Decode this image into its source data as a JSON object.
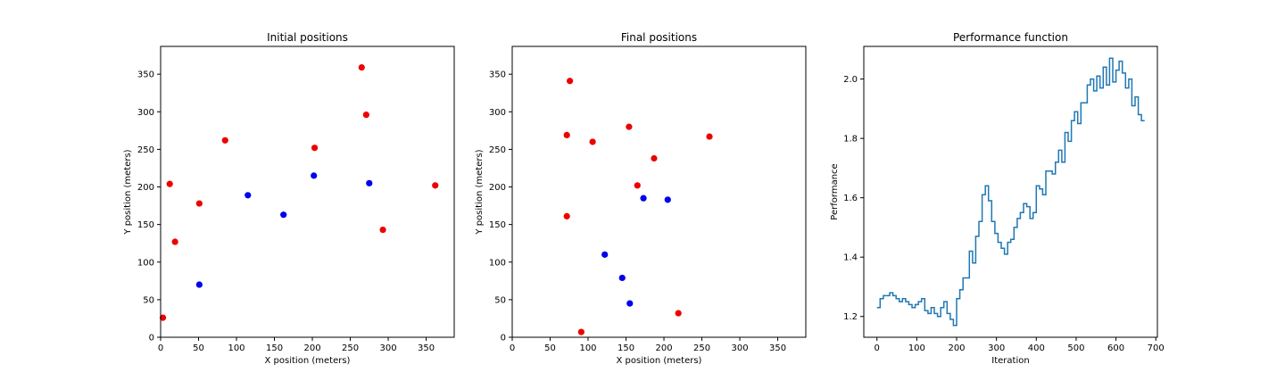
{
  "colors": {
    "red": "#ee0000",
    "blue": "#0000ee",
    "line": "#1f77b4",
    "axis": "#000000"
  },
  "chart_data": [
    {
      "type": "scatter",
      "title": "Initial positions",
      "xlabel": "X position (meters)",
      "ylabel": "Y position (meters)",
      "xlim": [
        0,
        387
      ],
      "ylim": [
        0,
        387
      ],
      "xticks": [
        0,
        50,
        100,
        150,
        200,
        250,
        300,
        350
      ],
      "yticks": [
        0,
        50,
        100,
        150,
        200,
        250,
        300,
        350
      ],
      "series": [
        {
          "color": "red",
          "points": [
            [
              3,
              26
            ],
            [
              12,
              204
            ],
            [
              19,
              127
            ],
            [
              51,
              178
            ],
            [
              85,
              262
            ],
            [
              203,
              252
            ],
            [
              265,
              359
            ],
            [
              271,
              296
            ],
            [
              293,
              143
            ],
            [
              362,
              202
            ]
          ]
        },
        {
          "color": "blue",
          "points": [
            [
              51,
              70
            ],
            [
              115,
              189
            ],
            [
              162,
              163
            ],
            [
              202,
              215
            ],
            [
              275,
              205
            ]
          ]
        }
      ]
    },
    {
      "type": "scatter",
      "title": "Final positions",
      "xlabel": "X position (meters)",
      "ylabel": "Y position (meters)",
      "xlim": [
        0,
        387
      ],
      "ylim": [
        0,
        387
      ],
      "xticks": [
        0,
        50,
        100,
        150,
        200,
        250,
        300,
        350
      ],
      "yticks": [
        0,
        50,
        100,
        150,
        200,
        250,
        300,
        350
      ],
      "series": [
        {
          "color": "red",
          "points": [
            [
              76,
              341
            ],
            [
              72,
              269
            ],
            [
              106,
              260
            ],
            [
              154,
              280
            ],
            [
              187,
              238
            ],
            [
              165,
              202
            ],
            [
              72,
              161
            ],
            [
              260,
              267
            ],
            [
              219,
              32
            ],
            [
              91,
              7
            ]
          ]
        },
        {
          "color": "blue",
          "points": [
            [
              173,
              185
            ],
            [
              205,
              183
            ],
            [
              122,
              110
            ],
            [
              145,
              79
            ],
            [
              155,
              45
            ]
          ]
        }
      ]
    },
    {
      "type": "line",
      "title": "Performance function",
      "xlabel": "Iteration",
      "ylabel": "Performance",
      "xlim": [
        -33,
        704
      ],
      "ylim": [
        1.13,
        2.11
      ],
      "xticks": [
        0,
        100,
        200,
        300,
        400,
        500,
        600,
        700
      ],
      "yticks": [
        1.2,
        1.4,
        1.6,
        1.8,
        2.0
      ],
      "ytick_labels": [
        "1.2",
        "1.4",
        "1.6",
        "1.8",
        "2.0"
      ],
      "step": true,
      "x": [
        0,
        8,
        16,
        24,
        32,
        40,
        48,
        56,
        64,
        72,
        80,
        88,
        96,
        104,
        112,
        120,
        128,
        136,
        144,
        152,
        160,
        168,
        176,
        184,
        192,
        200,
        208,
        216,
        224,
        232,
        240,
        248,
        256,
        264,
        272,
        280,
        288,
        296,
        304,
        312,
        320,
        328,
        336,
        344,
        352,
        360,
        368,
        376,
        384,
        392,
        400,
        408,
        416,
        424,
        432,
        440,
        448,
        456,
        464,
        472,
        480,
        488,
        496,
        504,
        512,
        520,
        528,
        536,
        544,
        552,
        560,
        568,
        576,
        584,
        592,
        600,
        608,
        616,
        624,
        632,
        640,
        648,
        656,
        664,
        672
      ],
      "y": [
        1.23,
        1.26,
        1.27,
        1.27,
        1.28,
        1.27,
        1.26,
        1.25,
        1.26,
        1.25,
        1.24,
        1.23,
        1.24,
        1.25,
        1.26,
        1.22,
        1.21,
        1.23,
        1.21,
        1.2,
        1.23,
        1.25,
        1.21,
        1.19,
        1.17,
        1.26,
        1.29,
        1.33,
        1.33,
        1.42,
        1.38,
        1.47,
        1.52,
        1.61,
        1.64,
        1.59,
        1.52,
        1.48,
        1.45,
        1.43,
        1.41,
        1.45,
        1.46,
        1.5,
        1.53,
        1.55,
        1.58,
        1.57,
        1.53,
        1.55,
        1.64,
        1.63,
        1.61,
        1.69,
        1.69,
        1.68,
        1.72,
        1.76,
        1.72,
        1.82,
        1.79,
        1.86,
        1.89,
        1.85,
        1.92,
        1.92,
        1.98,
        2.0,
        1.96,
        2.01,
        1.97,
        2.04,
        1.98,
        2.07,
        1.99,
        2.03,
        2.06,
        2.02,
        1.97,
        2.0,
        1.91,
        1.94,
        1.88,
        1.86,
        1.86
      ]
    }
  ]
}
